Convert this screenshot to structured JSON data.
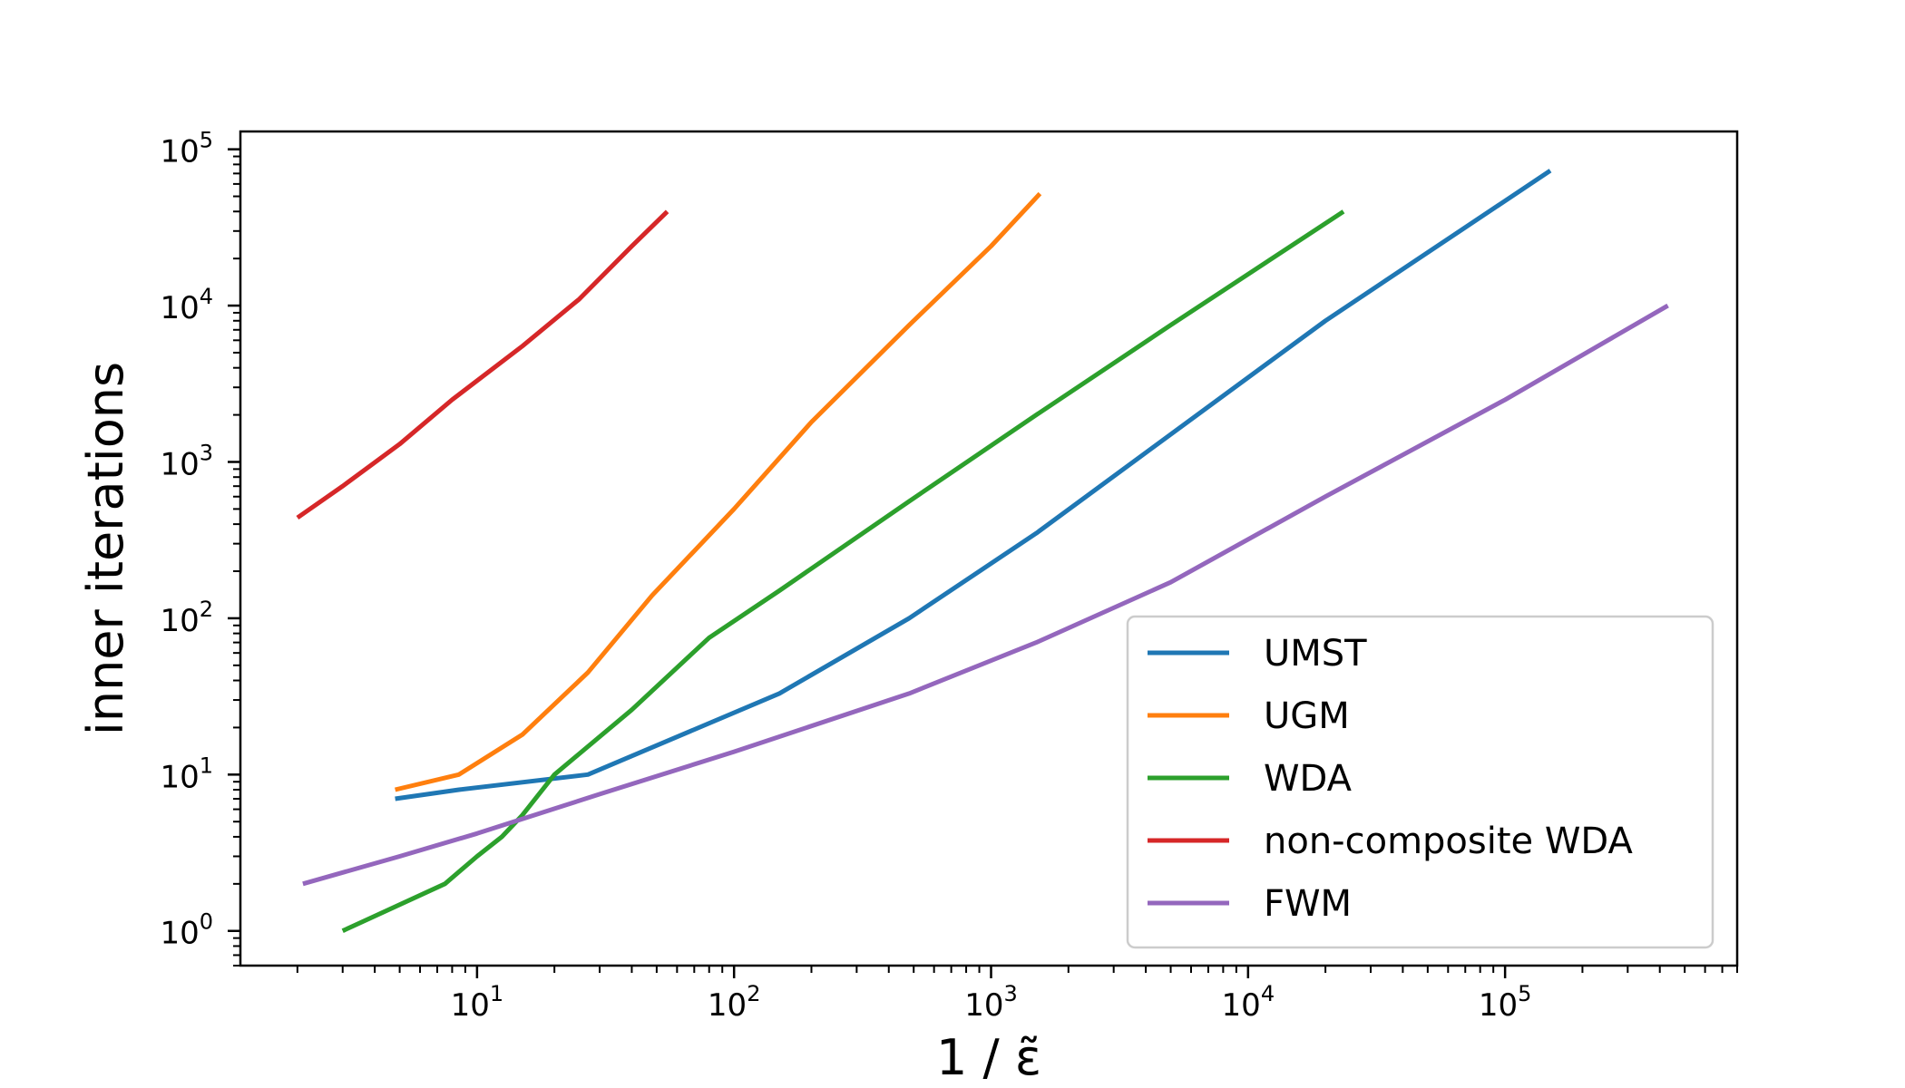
{
  "chart_data": {
    "type": "line",
    "title": "",
    "xlabel": "1 / ε̃",
    "ylabel": "inner iterations",
    "xscale": "log",
    "yscale": "log",
    "xlim": [
      1.2,
      800000
    ],
    "ylim": [
      0.6,
      130000
    ],
    "grid": false,
    "legend_position": "lower-right",
    "x_ticks": [
      {
        "value": 10,
        "base": "10",
        "exp": "1"
      },
      {
        "value": 100,
        "base": "10",
        "exp": "2"
      },
      {
        "value": 1000,
        "base": "10",
        "exp": "3"
      },
      {
        "value": 10000,
        "base": "10",
        "exp": "4"
      },
      {
        "value": 100000,
        "base": "10",
        "exp": "5"
      }
    ],
    "y_ticks": [
      {
        "value": 1,
        "base": "10",
        "exp": "0"
      },
      {
        "value": 10,
        "base": "10",
        "exp": "1"
      },
      {
        "value": 100,
        "base": "10",
        "exp": "2"
      },
      {
        "value": 1000,
        "base": "10",
        "exp": "3"
      },
      {
        "value": 10000,
        "base": "10",
        "exp": "4"
      },
      {
        "value": 100000,
        "base": "10",
        "exp": "5"
      }
    ],
    "series": [
      {
        "name": "UMST",
        "color": "#1f77b4",
        "x": [
          4.8,
          8.5,
          27,
          150,
          480,
          1500,
          5000,
          20000,
          150000
        ],
        "y": [
          7,
          8,
          10,
          33,
          100,
          350,
          1500,
          8000,
          73000
        ]
      },
      {
        "name": "UGM",
        "color": "#ff7f0e",
        "x": [
          4.8,
          8.5,
          15,
          27,
          48,
          100,
          200,
          480,
          1000,
          1550
        ],
        "y": [
          8,
          10,
          18,
          45,
          140,
          500,
          1800,
          7500,
          24000,
          52000
        ]
      },
      {
        "name": "WDA",
        "color": "#2ca02c",
        "x": [
          3,
          7.5,
          10,
          12.5,
          15,
          20,
          40,
          80,
          150,
          480,
          1500,
          5000,
          23500
        ],
        "y": [
          1,
          2,
          3,
          4,
          5.5,
          10,
          26,
          75,
          150,
          560,
          2000,
          7500,
          40000
        ]
      },
      {
        "name": "non-composite WDA",
        "color": "#d62728",
        "x": [
          2,
          3,
          5,
          8,
          15,
          25,
          40,
          55
        ],
        "y": [
          440,
          700,
          1300,
          2500,
          5500,
          11000,
          24000,
          40000
        ]
      },
      {
        "name": "FWM",
        "color": "#9467bd",
        "x": [
          2.1,
          5,
          10,
          30,
          100,
          480,
          1500,
          5000,
          20000,
          100000,
          430000
        ],
        "y": [
          2,
          3,
          4.2,
          7.5,
          14,
          33,
          70,
          170,
          600,
          2500,
          10000
        ]
      }
    ]
  }
}
